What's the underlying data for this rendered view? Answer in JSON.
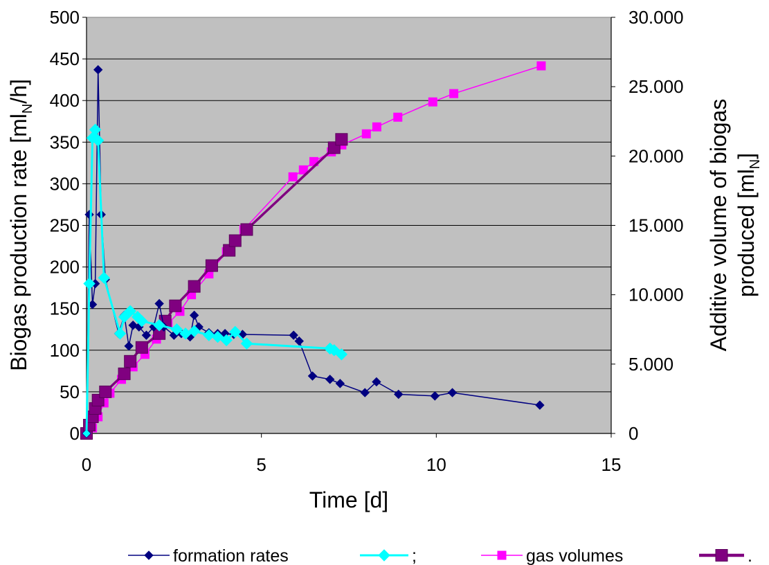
{
  "chart_data": {
    "type": "line",
    "plot_background": "#c0c0c0",
    "grid": "horizontal",
    "legend_position": "bottom",
    "xlabel": "Time [d]",
    "xlim": [
      0,
      15
    ],
    "x_ticks": [
      "0",
      "5",
      "10",
      "15"
    ],
    "ylabel_left": {
      "main": "Biogas production rate  [ml",
      "sub": "N",
      "end": "/h]"
    },
    "ylim_left": [
      0,
      500
    ],
    "y_ticks_left": [
      "0",
      "50",
      "100",
      "150",
      "200",
      "250",
      "300",
      "350",
      "400",
      "450",
      "500"
    ],
    "ylabel_right": {
      "line1": "Additive volume of biogas",
      "line2_main": "produced [ml",
      "line2_sub": "N",
      "line2_end": "]"
    },
    "ylim_right": [
      0,
      30000
    ],
    "y_ticks_right": [
      "0",
      "5.000",
      "10.000",
      "15.000",
      "20.000",
      "25.000",
      "30.000"
    ],
    "series": [
      {
        "name": "formation rates",
        "axis": "left",
        "color": "#000080",
        "marker": "diamond",
        "x": [
          0,
          0.08,
          0.17,
          0.25,
          0.33,
          0.42,
          0.54,
          0.92,
          1.08,
          1.21,
          1.33,
          1.5,
          1.71,
          1.92,
          2.08,
          2.21,
          2.5,
          2.71,
          2.96,
          3.08,
          3.21,
          3.5,
          3.75,
          3.96,
          4.21,
          4.46,
          5.92,
          6.08,
          6.46,
          6.96,
          7.25,
          7.96,
          8.29,
          8.92,
          9.96,
          10.46,
          12.96
        ],
        "y": [
          0,
          263,
          155,
          180,
          437,
          263,
          185,
          120,
          142,
          105,
          130,
          128,
          118,
          128,
          156,
          128,
          118,
          120,
          116,
          142,
          128,
          121,
          120,
          120,
          119,
          119,
          118,
          111,
          69,
          65,
          60,
          49,
          62,
          47,
          45,
          49,
          34
        ]
      },
      {
        "name": ";",
        "axis": "left",
        "color": "#00ffff",
        "marker": "diamond",
        "x": [
          0,
          0.08,
          0.17,
          0.25,
          0.33,
          0.5,
          0.96,
          1.08,
          1.25,
          1.46,
          1.58,
          2.08,
          2.58,
          2.83,
          3.08,
          3.5,
          3.75,
          4.0,
          4.25,
          4.58,
          6.96,
          7.08,
          7.29
        ],
        "y": [
          0,
          180,
          355,
          365,
          352,
          187,
          120,
          140,
          147,
          140,
          135,
          130,
          125,
          120,
          123,
          118,
          116,
          112,
          122,
          108,
          102,
          100,
          95
        ]
      },
      {
        "name": "gas volumes",
        "axis": "right",
        "color": "#ff00ff",
        "marker": "square",
        "x": [
          0,
          0.17,
          0.33,
          0.5,
          0.67,
          1.0,
          1.33,
          1.67,
          2.0,
          2.33,
          2.67,
          3.0,
          3.5,
          4.0,
          4.5,
          5.9,
          6.2,
          6.5,
          7.0,
          7.3,
          8.0,
          8.3,
          8.9,
          9.9,
          10.5,
          13.0
        ],
        "y": [
          0,
          400,
          1200,
          2200,
          2900,
          3900,
          4800,
          5700,
          6800,
          7900,
          8800,
          10000,
          11500,
          13100,
          14700,
          18500,
          19000,
          19600,
          20300,
          20800,
          21600,
          22100,
          22800,
          23900,
          24500,
          26500
        ]
      },
      {
        "name": ".",
        "axis": "right",
        "color": "#800080",
        "marker": "square",
        "x": [
          0,
          0.08,
          0.17,
          0.25,
          0.33,
          0.54,
          1.08,
          1.25,
          1.58,
          2.08,
          2.25,
          2.54,
          3.08,
          3.58,
          4.08,
          4.25,
          4.58,
          7.08,
          7.29
        ],
        "y": [
          0,
          600,
          1200,
          1800,
          2400,
          3000,
          4300,
          5200,
          6200,
          7200,
          8100,
          9200,
          10600,
          12100,
          13200,
          13900,
          14700,
          20600,
          21200
        ]
      }
    ]
  }
}
